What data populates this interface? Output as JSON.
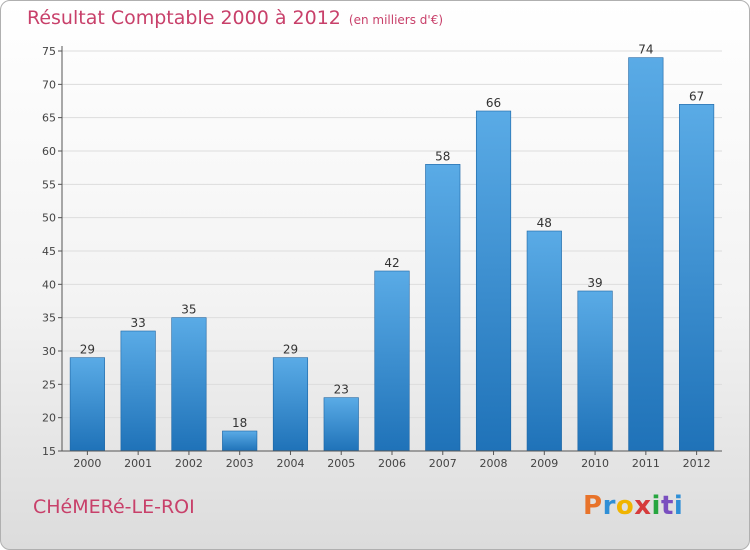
{
  "header": {
    "title": "Résultat Comptable 2000 à 2012",
    "unit": "(en milliers d'€)"
  },
  "footer": {
    "commune": "CHéMERé-LE-ROI",
    "logo_letters": [
      "P",
      "r",
      "o",
      "x",
      "i",
      "t",
      "i"
    ],
    "logo_colors": [
      "#e8732a",
      "#2f8fd6",
      "#f0b400",
      "#d63b3b",
      "#27a640",
      "#7a4fbf",
      "#2f8fd6"
    ]
  },
  "colors": {
    "bar_top": "#5aabe6",
    "bar_bottom": "#1f72b8",
    "text": "#c8406a",
    "axis": "#555555",
    "grid": "#dddddd"
  },
  "chart_data": {
    "type": "bar",
    "categories": [
      "2000",
      "2001",
      "2002",
      "2003",
      "2004",
      "2005",
      "2006",
      "2007",
      "2008",
      "2009",
      "2010",
      "2011",
      "2012"
    ],
    "values": [
      29,
      33,
      35,
      18,
      29,
      23,
      42,
      58,
      66,
      48,
      39,
      74,
      67
    ],
    "ylim": [
      15,
      75
    ],
    "yticks": [
      15,
      20,
      25,
      30,
      35,
      40,
      45,
      50,
      55,
      60,
      65,
      70,
      75
    ],
    "grid": true,
    "data_labels": true
  }
}
